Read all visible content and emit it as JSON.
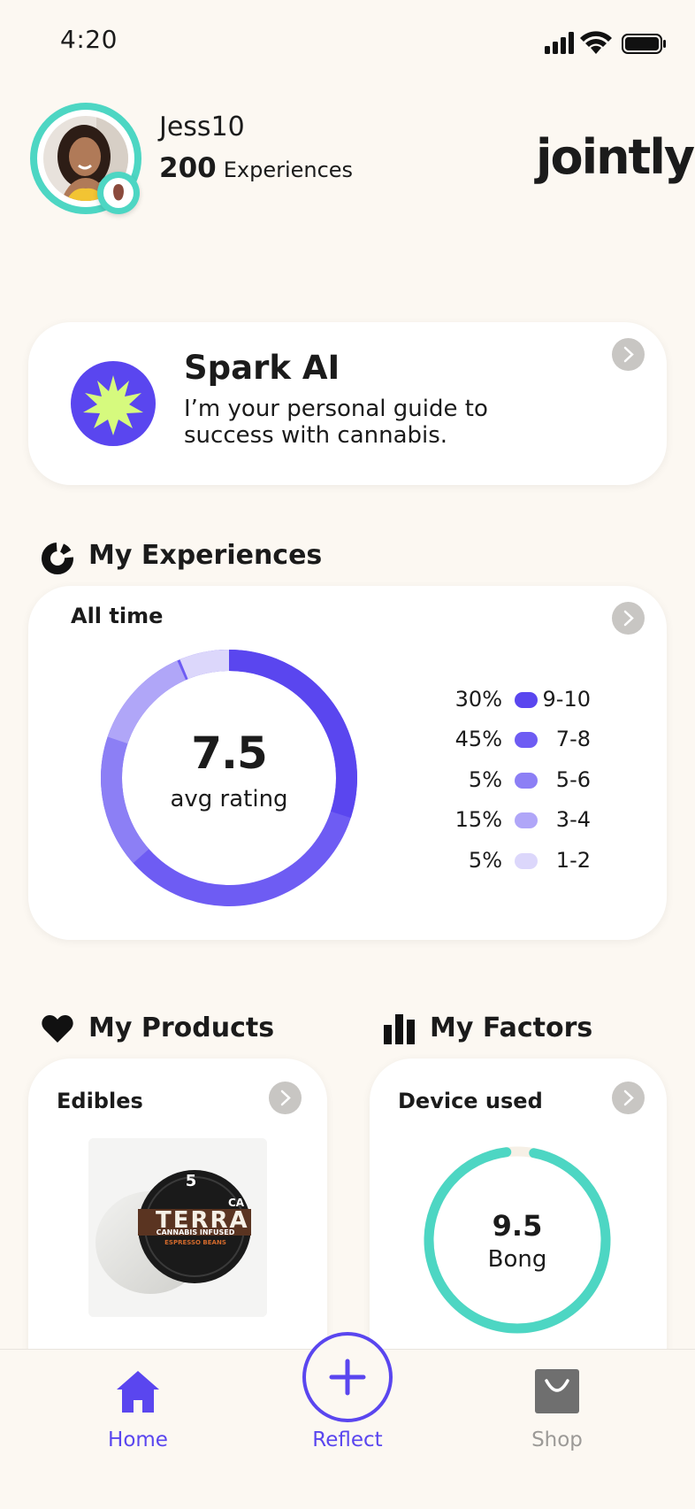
{
  "status_bar": {
    "time": "4:20"
  },
  "profile": {
    "username": "Jess10",
    "experience_count": "200",
    "experience_label": "Experiences"
  },
  "brand": {
    "logo_text": "jointly"
  },
  "spark": {
    "title": "Spark AI",
    "description": "I’m your personal guide to success with cannabis."
  },
  "experiences": {
    "section_title": "My Experiences",
    "filter_label": "All time",
    "avg_value": "7.5",
    "avg_label": "avg rating",
    "legend": [
      {
        "pct": "30%",
        "range": "9-10",
        "color": "#5a46ef"
      },
      {
        "pct": "45%",
        "range": "7-8",
        "color": "#6e5cf3"
      },
      {
        "pct": "5%",
        "range": "5-6",
        "color": "#8c7ff5"
      },
      {
        "pct": "15%",
        "range": "3-4",
        "color": "#b0a6f8"
      },
      {
        "pct": "5%",
        "range": "1-2",
        "color": "#dcd7fb"
      }
    ]
  },
  "products": {
    "section_title": "My Products",
    "category_label": "Edibles",
    "product_brand": "TERRA",
    "product_line1": "CANNABIS INFUSED",
    "product_line2": "ESPRESSO BEANS",
    "product_badge": "CA",
    "product_strength": "5"
  },
  "factors": {
    "section_title": "My Factors",
    "factor_label": "Device used",
    "value": "9.5",
    "value_label": "Bong",
    "fill_fraction": 0.95,
    "color": "#4dd6c3"
  },
  "nav": {
    "home_label": "Home",
    "reflect_label": "Reflect",
    "shop_label": "Shop",
    "active_color": "#5a46ef",
    "inactive_color": "#9c9a97"
  }
}
